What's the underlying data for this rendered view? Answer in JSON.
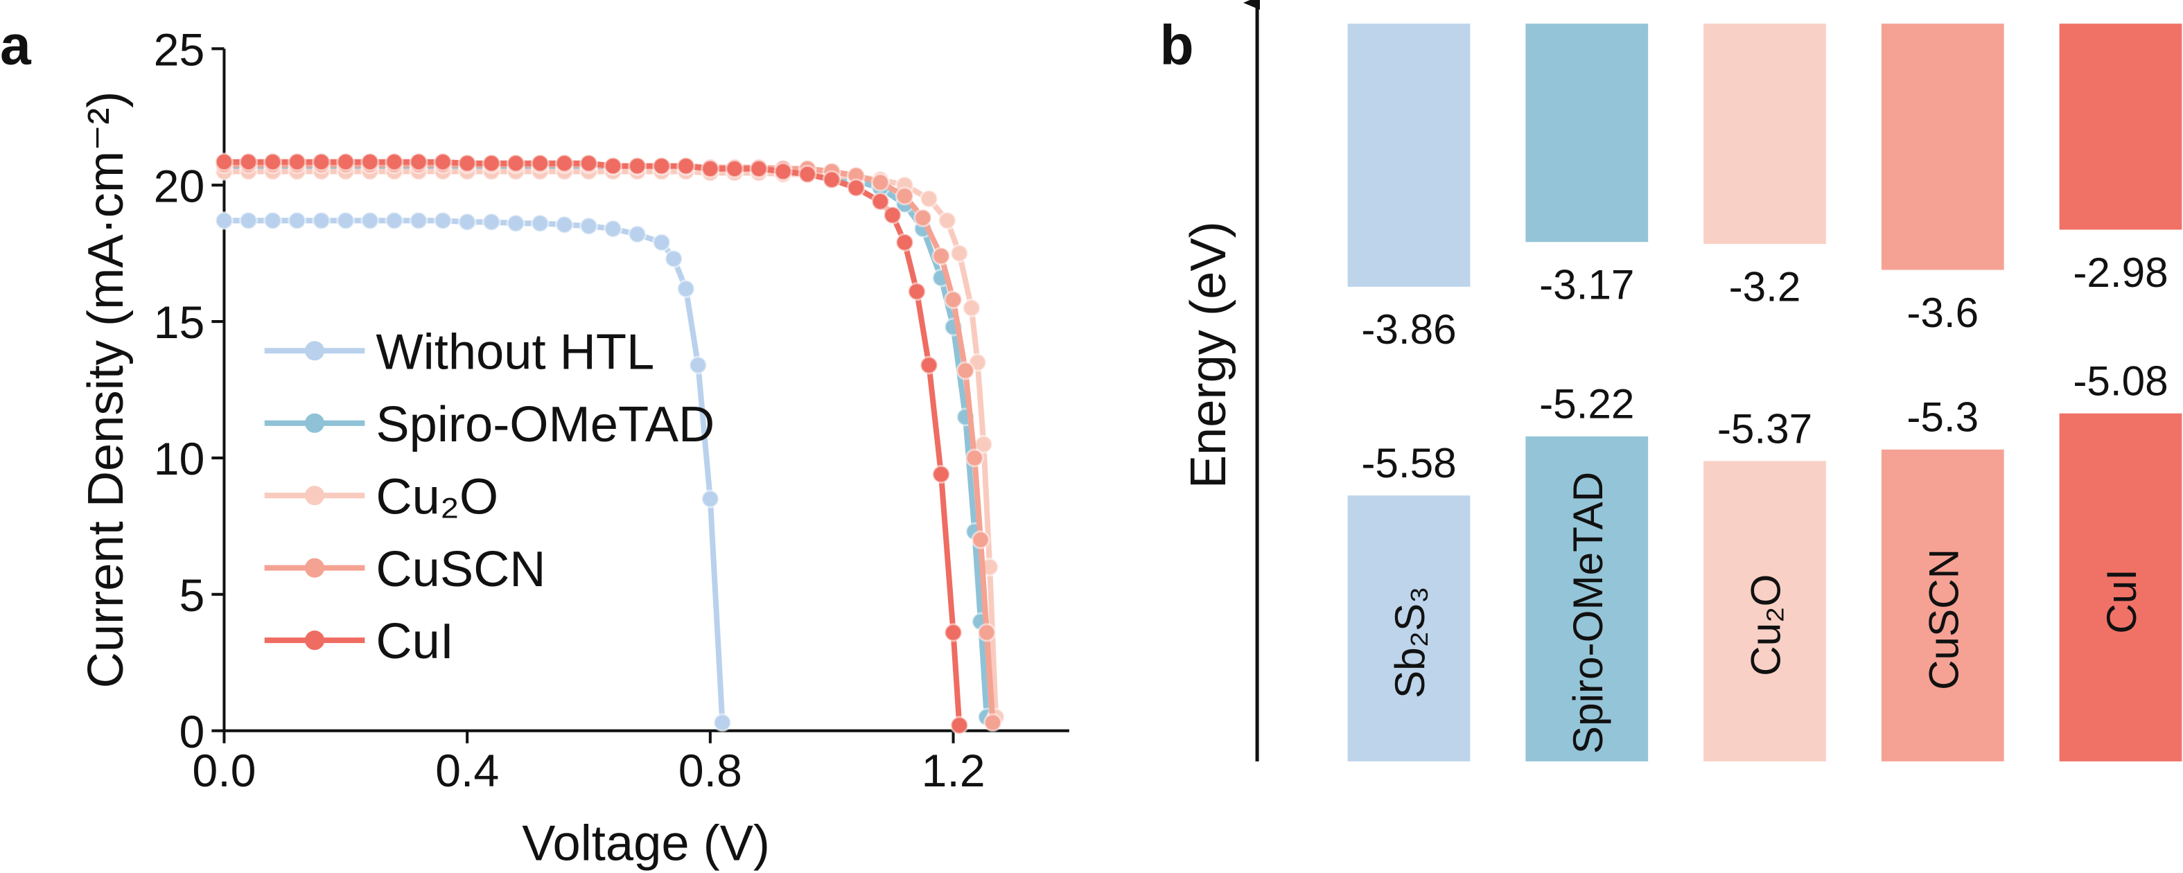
{
  "chart_data": [
    {
      "type": "line",
      "panel_label": "a",
      "x_label": "Voltage (V)",
      "y_label": "Current Density (mA·cm⁻²)",
      "xlim": [
        0,
        1.4
      ],
      "xticks": [
        {
          "value": 0,
          "label": "0.0"
        },
        0.4,
        0.8,
        1.2
      ],
      "ylim": [
        0,
        25
      ],
      "yticks": [
        0,
        5,
        10,
        15,
        20,
        25
      ],
      "legend": "center left",
      "series": [
        {
          "name": "Without HTL",
          "color": "#b9d1ec",
          "x": [
            0,
            0.04,
            0.08,
            0.12,
            0.16,
            0.2,
            0.24,
            0.28,
            0.32,
            0.36,
            0.4,
            0.44,
            0.48,
            0.52,
            0.56,
            0.6,
            0.64,
            0.68,
            0.72,
            0.74,
            0.76,
            0.78,
            0.8,
            0.82
          ],
          "y": [
            18.7,
            18.7,
            18.7,
            18.7,
            18.7,
            18.7,
            18.7,
            18.7,
            18.7,
            18.7,
            18.65,
            18.65,
            18.6,
            18.6,
            18.55,
            18.5,
            18.4,
            18.2,
            17.9,
            17.3,
            16.2,
            13.4,
            8.5,
            0.3
          ]
        },
        {
          "name": "Spiro-OMeTAD",
          "color": "#8fc2d6",
          "x": [
            0,
            0.04,
            0.08,
            0.12,
            0.16,
            0.2,
            0.24,
            0.28,
            0.32,
            0.36,
            0.4,
            0.44,
            0.48,
            0.52,
            0.56,
            0.6,
            0.64,
            0.68,
            0.72,
            0.76,
            0.8,
            0.84,
            0.88,
            0.92,
            0.96,
            1.0,
            1.04,
            1.08,
            1.12,
            1.15,
            1.18,
            1.2,
            1.22,
            1.235,
            1.245,
            1.255
          ],
          "y": [
            20.6,
            20.6,
            20.6,
            20.6,
            20.6,
            20.6,
            20.6,
            20.6,
            20.6,
            20.6,
            20.6,
            20.6,
            20.6,
            20.6,
            20.6,
            20.6,
            20.55,
            20.55,
            20.55,
            20.55,
            20.5,
            20.5,
            20.5,
            20.45,
            20.4,
            20.3,
            20.15,
            19.9,
            19.3,
            18.4,
            16.6,
            14.8,
            11.5,
            7.3,
            4.0,
            0.5
          ]
        },
        {
          "name": "Cu₂O",
          "color": "#f9cbbf",
          "x": [
            0,
            0.04,
            0.08,
            0.12,
            0.16,
            0.2,
            0.24,
            0.28,
            0.32,
            0.36,
            0.4,
            0.44,
            0.48,
            0.52,
            0.56,
            0.6,
            0.64,
            0.68,
            0.72,
            0.76,
            0.8,
            0.84,
            0.88,
            0.92,
            0.96,
            1.0,
            1.04,
            1.08,
            1.12,
            1.16,
            1.19,
            1.21,
            1.23,
            1.24,
            1.25,
            1.26,
            1.27
          ],
          "y": [
            20.5,
            20.5,
            20.5,
            20.5,
            20.5,
            20.5,
            20.5,
            20.5,
            20.5,
            20.5,
            20.5,
            20.5,
            20.5,
            20.5,
            20.5,
            20.5,
            20.5,
            20.5,
            20.5,
            20.5,
            20.45,
            20.45,
            20.45,
            20.4,
            20.4,
            20.35,
            20.3,
            20.2,
            20.0,
            19.5,
            18.7,
            17.5,
            15.5,
            13.5,
            10.5,
            6.0,
            0.5
          ]
        },
        {
          "name": "CuSCN",
          "color": "#f4a292",
          "x": [
            0,
            0.04,
            0.08,
            0.12,
            0.16,
            0.2,
            0.24,
            0.28,
            0.32,
            0.36,
            0.4,
            0.44,
            0.48,
            0.52,
            0.56,
            0.6,
            0.64,
            0.68,
            0.72,
            0.76,
            0.8,
            0.84,
            0.88,
            0.92,
            0.96,
            1.0,
            1.04,
            1.08,
            1.12,
            1.15,
            1.18,
            1.2,
            1.22,
            1.235,
            1.245,
            1.255,
            1.265
          ],
          "y": [
            20.75,
            20.75,
            20.75,
            20.75,
            20.75,
            20.75,
            20.75,
            20.75,
            20.75,
            20.75,
            20.75,
            20.75,
            20.75,
            20.75,
            20.75,
            20.75,
            20.7,
            20.7,
            20.7,
            20.7,
            20.65,
            20.65,
            20.65,
            20.6,
            20.6,
            20.5,
            20.35,
            20.1,
            19.6,
            18.8,
            17.4,
            15.8,
            13.2,
            10.0,
            7.0,
            3.6,
            0.3
          ]
        },
        {
          "name": "CuI",
          "color": "#ee6c61",
          "x": [
            0,
            0.04,
            0.08,
            0.12,
            0.16,
            0.2,
            0.24,
            0.28,
            0.32,
            0.36,
            0.4,
            0.44,
            0.48,
            0.52,
            0.56,
            0.6,
            0.64,
            0.68,
            0.72,
            0.76,
            0.8,
            0.84,
            0.88,
            0.92,
            0.96,
            1.0,
            1.04,
            1.08,
            1.1,
            1.12,
            1.14,
            1.16,
            1.18,
            1.2,
            1.21
          ],
          "y": [
            20.85,
            20.85,
            20.85,
            20.85,
            20.85,
            20.85,
            20.85,
            20.85,
            20.85,
            20.85,
            20.8,
            20.8,
            20.8,
            20.8,
            20.8,
            20.8,
            20.7,
            20.7,
            20.7,
            20.7,
            20.6,
            20.6,
            20.6,
            20.5,
            20.4,
            20.2,
            19.9,
            19.4,
            18.9,
            17.9,
            16.1,
            13.4,
            9.4,
            3.6,
            0.2
          ]
        }
      ]
    },
    {
      "type": "energy-levels",
      "panel_label": "b",
      "y_label": "Energy (eV)",
      "categories": [
        "Sb₂S₃",
        "Spiro-OMeTAD",
        "Cu₂O",
        "CuSCN",
        "CuI"
      ],
      "colors": [
        "#bdd4ea",
        "#94c4d7",
        "#f9d0c5",
        "#f5a294",
        "#f07266"
      ],
      "conduction_band": [
        -3.86,
        -3.17,
        -3.2,
        -3.6,
        -2.98
      ],
      "valence_band": [
        -5.58,
        -5.22,
        -5.37,
        -5.3,
        -5.08
      ]
    }
  ]
}
